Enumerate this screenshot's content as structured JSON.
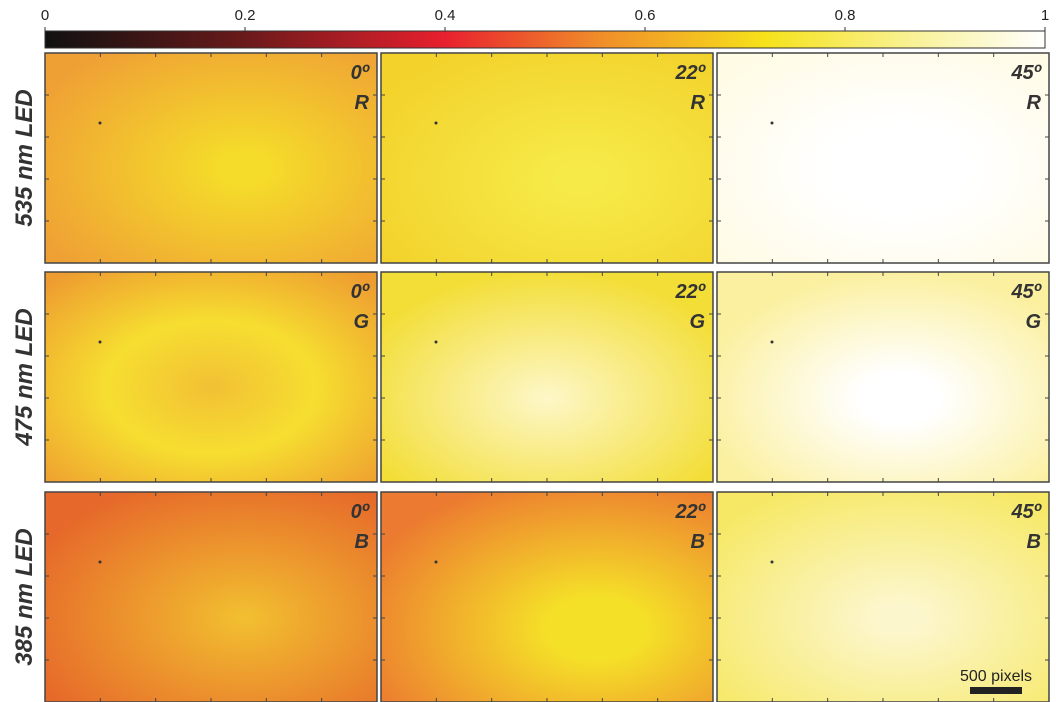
{
  "chart_data": {
    "type": "image-grid",
    "colorbar": {
      "lim": [
        0,
        1
      ],
      "ticks": [
        0,
        0.2,
        0.4,
        0.6,
        0.8,
        1
      ]
    },
    "rows": [
      {
        "label": "535 nm LED",
        "panels": [
          {
            "angle": "0º",
            "channel": "R"
          },
          {
            "angle": "22º",
            "channel": "R"
          },
          {
            "angle": "45º",
            "channel": "R"
          }
        ]
      },
      {
        "label": "475 nm LED",
        "panels": [
          {
            "angle": "0º",
            "channel": "G"
          },
          {
            "angle": "22º",
            "channel": "G"
          },
          {
            "angle": "45º",
            "channel": "G"
          }
        ]
      },
      {
        "label": "385 nm LED",
        "panels": [
          {
            "angle": "0º",
            "channel": "B"
          },
          {
            "angle": "22º",
            "channel": "B"
          },
          {
            "angle": "45º",
            "channel": "B"
          }
        ]
      }
    ],
    "scale_bar": {
      "label": "500 pixels"
    }
  }
}
